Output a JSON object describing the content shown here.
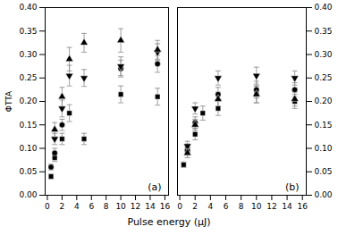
{
  "chart_data": [
    {
      "type": "scatter",
      "xlabel": "Pulse energy (μJ)",
      "ylabel": "ΦTTA",
      "annotation": "(a)",
      "xlim": [
        -0.3,
        16.5
      ],
      "xticks": [
        0,
        2,
        4,
        6,
        8,
        10,
        12,
        14,
        16
      ],
      "ylim": [
        0.0,
        0.4
      ],
      "yticks": [
        {
          "value": 0.0,
          "label": "0.00"
        },
        {
          "value": 0.05,
          "label": "0.05"
        },
        {
          "value": 0.1,
          "label": "0.10"
        },
        {
          "value": 0.15,
          "label": "0.15"
        },
        {
          "value": 0.2,
          "label": "0.20"
        },
        {
          "value": 0.25,
          "label": "0.25"
        },
        {
          "value": 0.3,
          "label": "0.30"
        },
        {
          "value": 0.35,
          "label": "0.35"
        },
        {
          "value": 0.4,
          "label": "0.40"
        }
      ],
      "grid": false,
      "series": [
        {
          "marker": "triangle_up",
          "color": "black",
          "x": [
            1,
            2,
            3,
            5,
            10,
            15
          ],
          "values": [
            0.14,
            0.21,
            0.29,
            0.325,
            0.33,
            0.31
          ],
          "yerr": [
            0.015,
            0.02,
            0.025,
            0.02,
            0.025,
            0.02
          ]
        },
        {
          "marker": "triangle_down",
          "color": "black",
          "x": [
            1,
            2,
            3,
            5,
            10,
            15
          ],
          "values": [
            0.12,
            0.185,
            0.255,
            0.25,
            0.275,
            0.305
          ],
          "yerr": [
            0.012,
            0.018,
            0.022,
            0.018,
            0.02,
            0.018
          ]
        },
        {
          "marker": "circle",
          "color": "black",
          "x": [
            0.5,
            1,
            2,
            10,
            15
          ],
          "values": [
            0.06,
            0.09,
            0.15,
            0.27,
            0.28
          ],
          "yerr": [
            0.006,
            0.01,
            0.012,
            0.018,
            0.018
          ]
        },
        {
          "marker": "square",
          "color": "black",
          "x": [
            0.5,
            1,
            2,
            3,
            5,
            10,
            15
          ],
          "values": [
            0.04,
            0.08,
            0.12,
            0.175,
            0.12,
            0.215,
            0.21
          ],
          "yerr": [
            0.005,
            0.008,
            0.012,
            0.018,
            0.012,
            0.018,
            0.018
          ]
        }
      ]
    },
    {
      "type": "scatter",
      "annotation": "(b)",
      "xlim": [
        -0.3,
        16.5
      ],
      "xticks": [
        0,
        2,
        4,
        6,
        8,
        10,
        12,
        14,
        16
      ],
      "ylim": [
        0.0,
        0.4
      ],
      "yticks": [
        {
          "value": 0.0,
          "label": "0.00"
        },
        {
          "value": 0.05,
          "label": "0.05"
        },
        {
          "value": 0.1,
          "label": "0.10"
        },
        {
          "value": 0.15,
          "label": "0.15"
        },
        {
          "value": 0.2,
          "label": "0.20"
        },
        {
          "value": 0.25,
          "label": "0.25"
        },
        {
          "value": 0.3,
          "label": "0.30"
        },
        {
          "value": 0.35,
          "label": "0.35"
        },
        {
          "value": 0.4,
          "label": "0.40"
        }
      ],
      "grid": false,
      "series": [
        {
          "marker": "triangle_up",
          "color": "black",
          "x": [
            1,
            2,
            5,
            10,
            15
          ],
          "values": [
            0.09,
            0.15,
            0.205,
            0.215,
            0.205
          ],
          "yerr": [
            0.01,
            0.012,
            0.015,
            0.018,
            0.015
          ]
        },
        {
          "marker": "triangle_down",
          "color": "black",
          "x": [
            1,
            2,
            5,
            10,
            15
          ],
          "values": [
            0.105,
            0.185,
            0.25,
            0.255,
            0.25
          ],
          "yerr": [
            0.01,
            0.012,
            0.015,
            0.018,
            0.015
          ]
        },
        {
          "marker": "circle",
          "color": "black",
          "x": [
            1,
            2,
            5,
            10,
            15
          ],
          "values": [
            0.095,
            0.155,
            0.215,
            0.225,
            0.225
          ],
          "yerr": [
            0.01,
            0.012,
            0.015,
            0.018,
            0.015
          ]
        },
        {
          "marker": "square",
          "color": "black",
          "x": [
            0.5,
            1,
            2,
            3,
            5,
            10,
            15
          ],
          "values": [
            0.065,
            0.1,
            0.13,
            0.175,
            0.185,
            0.215,
            0.2
          ],
          "yerr": [
            0.006,
            0.01,
            0.012,
            0.015,
            0.015,
            0.018,
            0.015
          ]
        }
      ]
    }
  ]
}
